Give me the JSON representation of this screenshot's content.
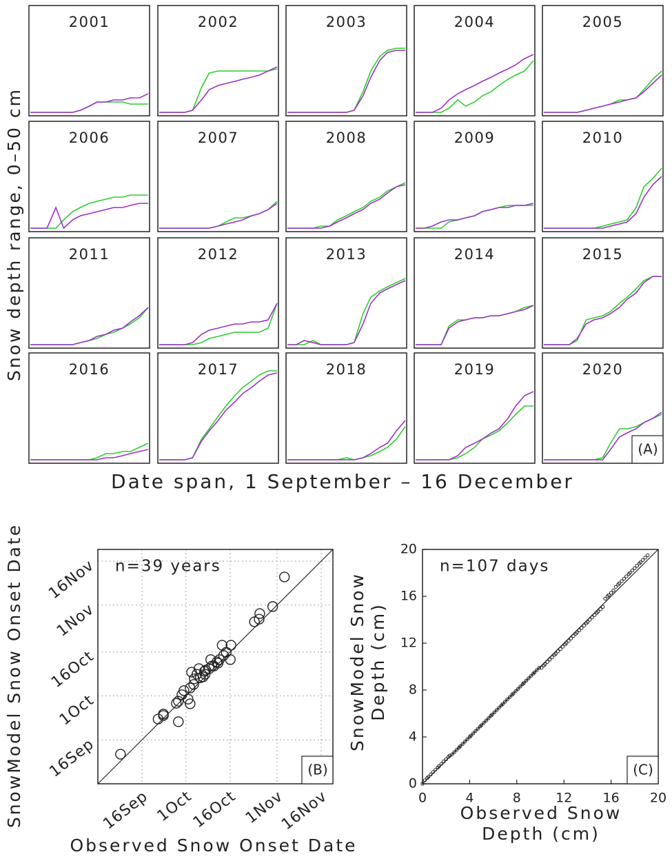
{
  "chart_data": [
    {
      "type": "line",
      "ylabel": "Snow depth range, 0–50 cm",
      "xlabel": "Date span, 1 September – 16 December",
      "panel_label": "(A)",
      "xlim": [
        0,
        106
      ],
      "ylim": [
        0,
        50
      ],
      "x": [
        0,
        8,
        15,
        23,
        30,
        38,
        45,
        53,
        60,
        68,
        75,
        83,
        90,
        98,
        106
      ],
      "colors": [
        "#2ecc2e",
        "#9b30c8"
      ],
      "panels": [
        {
          "title": "2001",
          "series": [
            [
              0,
              0,
              0,
              0,
              0,
              0,
              1,
              3,
              5,
              5,
              5,
              5,
              4,
              4,
              4
            ],
            [
              0,
              0,
              0,
              0,
              0,
              0,
              1,
              3,
              5,
              5,
              6,
              6,
              7,
              7,
              9
            ]
          ]
        },
        {
          "title": "2002",
          "series": [
            [
              0,
              0,
              0,
              0,
              1,
              12,
              19,
              20,
              20,
              20,
              20,
              20,
              20,
              20,
              21
            ],
            [
              0,
              0,
              0,
              0,
              1,
              6,
              11,
              13,
              14,
              15,
              16,
              17,
              18,
              20,
              22
            ]
          ]
        },
        {
          "title": "2003",
          "series": [
            [
              0,
              0,
              0,
              0,
              0,
              0,
              0,
              0,
              1,
              10,
              20,
              27,
              30,
              31,
              31
            ],
            [
              0,
              0,
              0,
              0,
              0,
              0,
              0,
              0,
              1,
              8,
              17,
              25,
              29,
              30,
              30
            ]
          ]
        },
        {
          "title": "2004",
          "series": [
            [
              0,
              0,
              0,
              0,
              2,
              6,
              3,
              5,
              8,
              10,
              13,
              16,
              18,
              20,
              25
            ],
            [
              0,
              0,
              0,
              2,
              6,
              9,
              11,
              13,
              15,
              17,
              19,
              21,
              23,
              26,
              28
            ]
          ]
        },
        {
          "title": "2005",
          "series": [
            [
              0,
              0,
              0,
              0,
              0,
              1,
              2,
              3,
              4,
              6,
              6,
              7,
              11,
              16,
              20
            ],
            [
              0,
              0,
              0,
              0,
              0,
              1,
              2,
              3,
              4,
              5,
              6,
              7,
              10,
              14,
              18
            ]
          ]
        },
        {
          "title": "2006",
          "series": [
            [
              0,
              0,
              0,
              0,
              4,
              8,
              10,
              12,
              13,
              14,
              15,
              15,
              16,
              16,
              16
            ],
            [
              0,
              0,
              0,
              10,
              0,
              4,
              6,
              7,
              8,
              9,
              10,
              10,
              11,
              12,
              12
            ]
          ]
        },
        {
          "title": "2007",
          "series": [
            [
              0,
              0,
              0,
              0,
              0,
              0,
              0,
              1,
              3,
              5,
              5,
              6,
              7,
              9,
              13
            ],
            [
              0,
              0,
              0,
              0,
              0,
              0,
              0,
              1,
              2,
              3,
              4,
              6,
              7,
              9,
              12
            ]
          ]
        },
        {
          "title": "2008",
          "series": [
            [
              0,
              0,
              0,
              0,
              1,
              1,
              4,
              6,
              8,
              10,
              13,
              15,
              18,
              20,
              22
            ],
            [
              0,
              0,
              0,
              0,
              0,
              1,
              3,
              5,
              7,
              9,
              12,
              14,
              17,
              20,
              21
            ]
          ]
        },
        {
          "title": "2009",
          "series": [
            [
              0,
              0,
              0,
              0,
              3,
              4,
              5,
              6,
              8,
              9,
              10,
              11,
              11,
              11,
              11
            ],
            [
              0,
              0,
              1,
              3,
              4,
              4,
              5,
              6,
              8,
              9,
              10,
              10,
              11,
              11,
              12
            ]
          ]
        },
        {
          "title": "2010",
          "series": [
            [
              0,
              0,
              0,
              0,
              0,
              0,
              0,
              1,
              2,
              3,
              4,
              10,
              20,
              24,
              29
            ],
            [
              0,
              0,
              0,
              0,
              0,
              0,
              0,
              0,
              1,
              2,
              3,
              7,
              15,
              21,
              25
            ]
          ]
        },
        {
          "title": "2011",
          "series": [
            [
              0,
              0,
              0,
              0,
              0,
              0,
              1,
              2,
              3,
              5,
              6,
              8,
              10,
              13,
              18
            ],
            [
              0,
              0,
              0,
              0,
              0,
              0,
              1,
              2,
              4,
              5,
              7,
              8,
              11,
              14,
              18
            ]
          ]
        },
        {
          "title": "2012",
          "series": [
            [
              0,
              0,
              0,
              0,
              0,
              1,
              3,
              4,
              5,
              6,
              6,
              6,
              6,
              8,
              20
            ],
            [
              0,
              0,
              0,
              0,
              1,
              5,
              7,
              8,
              9,
              10,
              10,
              11,
              11,
              12,
              20
            ]
          ]
        },
        {
          "title": "2013",
          "series": [
            [
              0,
              0,
              0,
              2,
              0,
              0,
              0,
              0,
              1,
              15,
              23,
              26,
              28,
              30,
              32
            ],
            [
              0,
              0,
              2,
              1,
              0,
              0,
              0,
              0,
              1,
              10,
              20,
              25,
              27,
              29,
              31
            ]
          ]
        },
        {
          "title": "2014",
          "series": [
            [
              0,
              0,
              0,
              0,
              9,
              12,
              12,
              13,
              13,
              14,
              14,
              15,
              16,
              18,
              19
            ],
            [
              0,
              0,
              0,
              0,
              8,
              11,
              12,
              13,
              13,
              14,
              14,
              15,
              16,
              17,
              19
            ]
          ]
        },
        {
          "title": "2015",
          "series": [
            [
              0,
              0,
              0,
              0,
              2,
              12,
              13,
              14,
              16,
              20,
              23,
              27,
              31,
              33,
              33
            ],
            [
              0,
              0,
              0,
              0,
              3,
              10,
              12,
              13,
              15,
              18,
              22,
              25,
              30,
              33,
              33
            ]
          ]
        },
        {
          "title": "2016",
          "series": [
            [
              0,
              0,
              0,
              0,
              0,
              0,
              0,
              0,
              1,
              3,
              3,
              4,
              4,
              6,
              8
            ],
            [
              0,
              0,
              0,
              0,
              0,
              0,
              0,
              0,
              0,
              1,
              1,
              2,
              3,
              4,
              5
            ]
          ]
        },
        {
          "title": "2017",
          "series": [
            [
              0,
              0,
              0,
              0,
              1,
              10,
              15,
              21,
              26,
              31,
              35,
              38,
              41,
              43,
              43
            ],
            [
              0,
              0,
              0,
              0,
              1,
              9,
              14,
              19,
              24,
              28,
              32,
              35,
              38,
              41,
              42
            ]
          ]
        },
        {
          "title": "2018",
          "series": [
            [
              0,
              0,
              0,
              0,
              0,
              0,
              0,
              1,
              0,
              1,
              2,
              4,
              6,
              10,
              16
            ],
            [
              0,
              0,
              0,
              0,
              0,
              0,
              0,
              0,
              0,
              1,
              3,
              6,
              8,
              14,
              19
            ]
          ]
        },
        {
          "title": "2019",
          "series": [
            [
              0,
              0,
              0,
              0,
              0,
              1,
              3,
              6,
              10,
              12,
              14,
              18,
              22,
              26,
              26
            ],
            [
              0,
              0,
              0,
              0,
              0,
              2,
              6,
              8,
              10,
              13,
              15,
              20,
              26,
              31,
              33
            ]
          ]
        },
        {
          "title": "2020",
          "series": [
            [
              0,
              0,
              0,
              0,
              0,
              0,
              0,
              1,
              8,
              15,
              15,
              16,
              18,
              20,
              22
            ],
            [
              0,
              0,
              0,
              0,
              0,
              0,
              0,
              0,
              5,
              11,
              13,
              15,
              18,
              20,
              23
            ]
          ]
        }
      ]
    },
    {
      "type": "scatter",
      "annotation": "n=39 years",
      "panel_label": "(B)",
      "xlabel": [
        "Observed Snow Onset Date"
      ],
      "ylabel": [
        "SnowModel Snow Onset Date"
      ],
      "xlim": [
        0,
        80
      ],
      "ylim": [
        0,
        80
      ],
      "grid": true,
      "color": "#222222",
      "xticks": [
        {
          "value": 15,
          "label": "16Sep"
        },
        {
          "value": 30,
          "label": "1Oct"
        },
        {
          "value": 45,
          "label": "16Oct"
        },
        {
          "value": 61,
          "label": "1Nov"
        },
        {
          "value": 76,
          "label": "16Nov"
        }
      ],
      "yticks": [
        {
          "value": 15,
          "label": "16Sep"
        },
        {
          "value": 30,
          "label": "1Oct"
        },
        {
          "value": 45,
          "label": "16Oct"
        },
        {
          "value": 61,
          "label": "1Nov"
        },
        {
          "value": 76,
          "label": "16Nov"
        }
      ],
      "x": [
        7.7,
        20.5,
        22.3,
        22.3,
        27.4,
        26.7,
        27.4,
        28.6,
        31.4,
        31.4,
        32.6,
        31.9,
        32.8,
        33.7,
        34.9,
        35.8,
        36.3,
        36.5,
        38.8,
        38.4,
        39.5,
        40.5,
        40.9,
        41.4,
        42.8,
        42.3,
        45.1,
        45.3,
        43.7,
        37.9,
        53.3,
        54.9,
        55.1,
        59.5,
        63.5,
        34.4,
        29.3,
        30.7,
        36.7
      ],
      "values": [
        10.1,
        22.1,
        23.8,
        23.3,
        21.2,
        27.5,
        28.2,
        30.4,
        27.3,
        32.7,
        33.9,
        38.1,
        35.8,
        37.4,
        36.2,
        36.5,
        38.4,
        37.4,
        40.2,
        42.4,
        40.2,
        41.6,
        41.2,
        42.4,
        43.8,
        47.3,
        42.4,
        47.3,
        44.9,
        39.3,
        55.3,
        56.2,
        58.1,
        60.5,
        70.6,
        39.3,
        31.8,
        28.9,
        38.8
      ]
    },
    {
      "type": "scatter",
      "annotation": "n=107 days",
      "panel_label": "(C)",
      "xlabel": [
        "Observed Snow",
        "Depth (cm)"
      ],
      "ylabel": [
        "SnowModel Snow",
        "Depth (cm)"
      ],
      "xlim": [
        0,
        20
      ],
      "ylim": [
        0,
        20
      ],
      "grid": false,
      "color": "#222222",
      "xticks": [
        0,
        4,
        8,
        12,
        16,
        20
      ],
      "yticks": [
        0,
        4,
        8,
        12,
        16,
        20
      ],
      "x": [
        0.0,
        0.2,
        0.4,
        0.5,
        0.7,
        0.9,
        1.1,
        1.3,
        1.4,
        1.6,
        1.8,
        2.0,
        2.2,
        2.3,
        2.5,
        2.7,
        2.9,
        3.1,
        3.2,
        3.4,
        3.6,
        3.8,
        4.0,
        4.1,
        4.3,
        4.5,
        4.7,
        4.9,
        5.0,
        5.2,
        5.4,
        5.6,
        5.8,
        5.9,
        6.1,
        6.3,
        6.5,
        6.7,
        6.8,
        7.0,
        7.2,
        7.4,
        7.6,
        7.7,
        7.9,
        8.1,
        8.3,
        8.5,
        8.6,
        8.8,
        9.0,
        9.2,
        9.4,
        9.5,
        9.7,
        9.9,
        10.1,
        10.3,
        10.4,
        10.6,
        10.8,
        11.0,
        11.2,
        11.3,
        11.5,
        11.7,
        11.9,
        12.1,
        12.2,
        12.4,
        12.6,
        12.8,
        13.0,
        13.1,
        13.3,
        13.5,
        13.7,
        13.9,
        14.0,
        14.2,
        14.4,
        14.6,
        14.8,
        14.9,
        15.1,
        15.3,
        15.5,
        15.7,
        15.8,
        16.0,
        16.2,
        16.4,
        16.6,
        16.7,
        16.9,
        17.1,
        17.3,
        17.5,
        17.6,
        17.8,
        18.0,
        18.2,
        18.4,
        18.5,
        18.7,
        18.9,
        19.1
      ],
      "values": [
        0.0,
        0.3,
        0.5,
        0.6,
        0.8,
        1.0,
        1.2,
        1.4,
        1.5,
        1.7,
        1.9,
        2.1,
        2.3,
        2.4,
        2.5,
        2.7,
        2.9,
        3.1,
        3.2,
        3.4,
        3.6,
        3.8,
        4.0,
        4.1,
        4.3,
        4.5,
        4.7,
        4.9,
        5.0,
        5.2,
        5.4,
        5.6,
        5.8,
        5.9,
        6.1,
        6.3,
        6.5,
        6.7,
        6.8,
        7.0,
        7.2,
        7.4,
        7.6,
        7.7,
        7.9,
        8.1,
        8.3,
        8.5,
        8.6,
        8.8,
        9.0,
        9.2,
        9.4,
        9.5,
        9.7,
        9.9,
        9.9,
        10.1,
        10.2,
        10.4,
        10.6,
        10.8,
        11.0,
        11.1,
        11.3,
        11.5,
        11.7,
        11.9,
        12.0,
        12.2,
        12.4,
        12.6,
        12.8,
        12.9,
        13.1,
        13.3,
        13.5,
        13.7,
        13.8,
        14.0,
        14.2,
        14.4,
        14.6,
        14.7,
        14.9,
        15.1,
        15.8,
        16.0,
        16.1,
        16.3,
        16.5,
        16.8,
        17.0,
        17.1,
        17.3,
        17.5,
        17.7,
        17.9,
        18.0,
        18.2,
        18.4,
        18.6,
        18.8,
        18.9,
        19.1,
        19.3,
        19.5
      ]
    }
  ]
}
